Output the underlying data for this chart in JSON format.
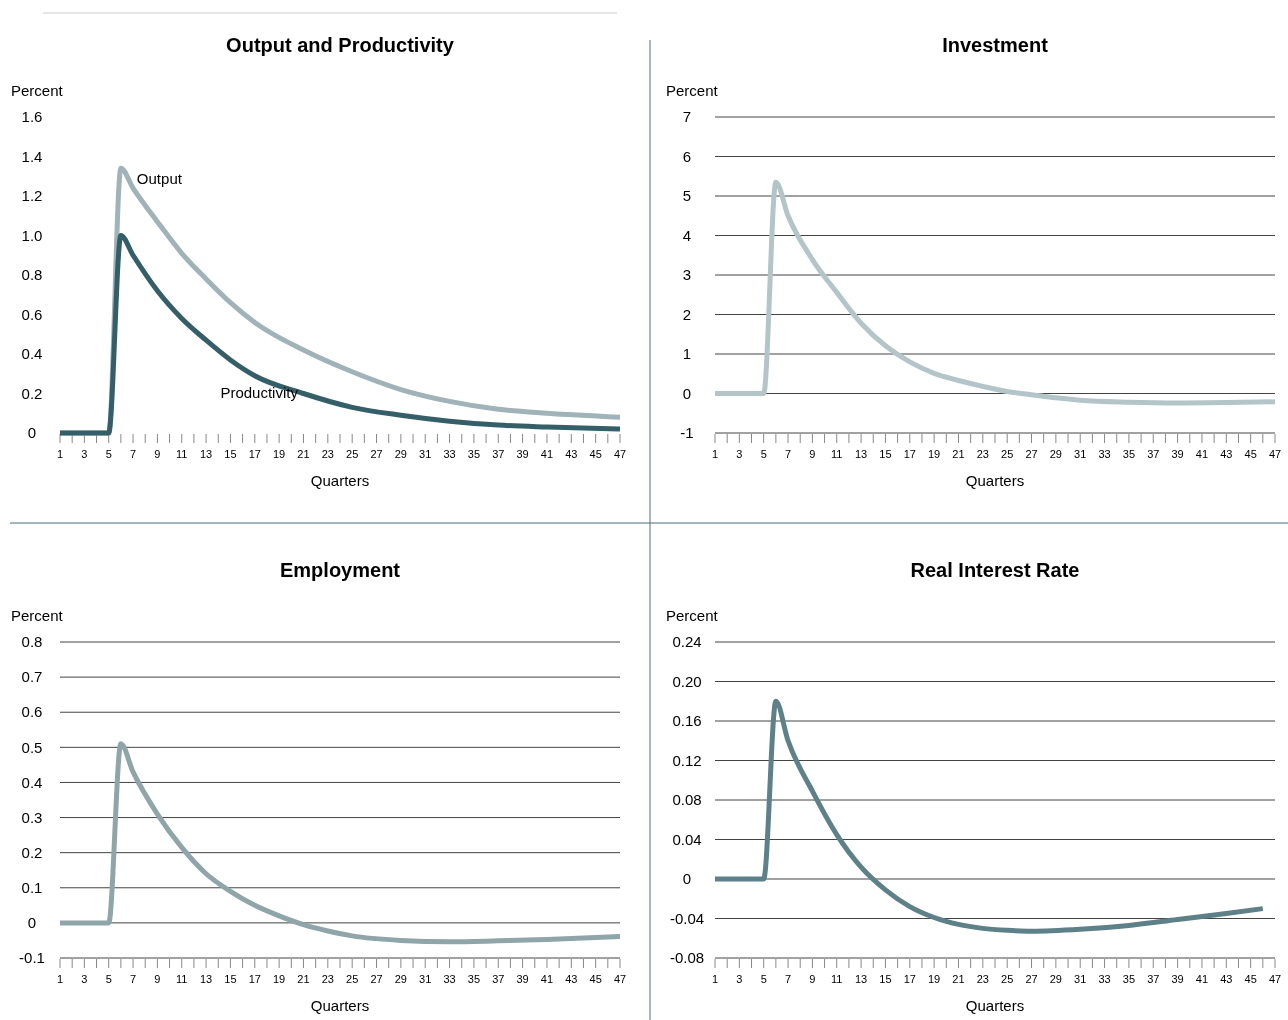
{
  "chart_data": [
    {
      "type": "line",
      "title": "Output and Productivity",
      "ylabel": "Percent",
      "xlabel": "Quarters",
      "xlim": [
        1,
        47
      ],
      "xticks": [
        1,
        {
          "value": 2,
          "label": null
        },
        3,
        {
          "value": 4,
          "label": null
        },
        5,
        {
          "value": 6,
          "label": null
        },
        7,
        {
          "value": 8,
          "label": null
        },
        9,
        {
          "value": 10,
          "label": null
        },
        11,
        {
          "value": 12,
          "label": null
        },
        13,
        {
          "value": 14,
          "label": null
        },
        15,
        {
          "value": 16,
          "label": null
        },
        17,
        {
          "value": 18,
          "label": null
        },
        19,
        {
          "value": 20,
          "label": null
        },
        21,
        {
          "value": 22,
          "label": null
        },
        23,
        {
          "value": 24,
          "label": null
        },
        25,
        {
          "value": 26,
          "label": null
        },
        27,
        {
          "value": 28,
          "label": null
        },
        29,
        {
          "value": 30,
          "label": null
        },
        31,
        {
          "value": 32,
          "label": null
        },
        33,
        {
          "value": 34,
          "label": null
        },
        35,
        {
          "value": 36,
          "label": null
        },
        37,
        {
          "value": 38,
          "label": null
        },
        39,
        {
          "value": 40,
          "label": null
        },
        41,
        {
          "value": 42,
          "label": null
        },
        43,
        {
          "value": 44,
          "label": null
        },
        45,
        {
          "value": 46,
          "label": null
        },
        47
      ],
      "ylim": [
        0,
        1.6
      ],
      "yticks": [
        0,
        0.2,
        0.4,
        0.6,
        0.8,
        {
          "value": 1,
          "label": "1.0"
        },
        1.2,
        1.4,
        1.6
      ],
      "grid": false,
      "x": [
        1,
        5,
        6,
        7,
        9,
        11,
        13,
        15,
        17,
        21,
        25,
        29,
        33,
        37,
        41,
        47
      ],
      "series": [
        {
          "name": "Output",
          "color": "#9fb3b8",
          "values": [
            0,
            0,
            1.34,
            1.24,
            1.07,
            0.91,
            0.78,
            0.66,
            0.56,
            0.42,
            0.31,
            0.22,
            0.16,
            0.12,
            0.1,
            0.08
          ]
        },
        {
          "name": "Productivity",
          "color": "#355f68",
          "values": [
            0,
            0,
            1.0,
            0.9,
            0.72,
            0.58,
            0.47,
            0.37,
            0.29,
            0.2,
            0.13,
            0.09,
            0.06,
            0.04,
            0.03,
            0.02
          ]
        }
      ]
    },
    {
      "type": "line",
      "title": "Investment",
      "ylabel": "Percent",
      "xlabel": "Quarters",
      "xlim": [
        1,
        47
      ],
      "xticks": [
        1,
        {
          "value": 2,
          "label": null
        },
        3,
        {
          "value": 4,
          "label": null
        },
        5,
        {
          "value": 6,
          "label": null
        },
        7,
        {
          "value": 8,
          "label": null
        },
        9,
        {
          "value": 10,
          "label": null
        },
        11,
        {
          "value": 12,
          "label": null
        },
        13,
        {
          "value": 14,
          "label": null
        },
        15,
        {
          "value": 16,
          "label": null
        },
        17,
        {
          "value": 18,
          "label": null
        },
        19,
        {
          "value": 20,
          "label": null
        },
        21,
        {
          "value": 22,
          "label": null
        },
        23,
        {
          "value": 24,
          "label": null
        },
        25,
        {
          "value": 26,
          "label": null
        },
        27,
        {
          "value": 28,
          "label": null
        },
        29,
        {
          "value": 30,
          "label": null
        },
        31,
        {
          "value": 32,
          "label": null
        },
        33,
        {
          "value": 34,
          "label": null
        },
        35,
        {
          "value": 36,
          "label": null
        },
        37,
        {
          "value": 38,
          "label": null
        },
        39,
        {
          "value": 40,
          "label": null
        },
        41,
        {
          "value": 42,
          "label": null
        },
        43,
        {
          "value": 44,
          "label": null
        },
        45,
        {
          "value": 46,
          "label": null
        },
        47
      ],
      "ylim": [
        -1,
        7
      ],
      "yticks": [
        -1,
        0,
        1,
        2,
        3,
        4,
        5,
        6,
        7
      ],
      "grid": "y",
      "x": [
        1,
        5,
        6,
        7,
        9,
        11,
        13,
        15,
        17,
        19,
        21,
        23,
        25,
        27,
        29,
        31,
        35,
        39,
        43,
        47
      ],
      "series": [
        {
          "color": "#b3c5c9",
          "values": [
            0,
            0,
            5.35,
            4.5,
            3.39,
            2.56,
            1.78,
            1.21,
            0.8,
            0.51,
            0.33,
            0.18,
            0.05,
            -0.03,
            -0.11,
            -0.17,
            -0.22,
            -0.24,
            -0.23,
            -0.21
          ]
        }
      ]
    },
    {
      "type": "line",
      "title": "Employment",
      "ylabel": "Percent",
      "xlabel": "Quarters",
      "xlim": [
        1,
        47
      ],
      "xticks": [
        1,
        {
          "value": 2,
          "label": null
        },
        3,
        {
          "value": 4,
          "label": null
        },
        5,
        {
          "value": 6,
          "label": null
        },
        7,
        {
          "value": 8,
          "label": null
        },
        9,
        {
          "value": 10,
          "label": null
        },
        11,
        {
          "value": 12,
          "label": null
        },
        13,
        {
          "value": 14,
          "label": null
        },
        15,
        {
          "value": 16,
          "label": null
        },
        17,
        {
          "value": 18,
          "label": null
        },
        19,
        {
          "value": 20,
          "label": null
        },
        21,
        {
          "value": 22,
          "label": null
        },
        23,
        {
          "value": 24,
          "label": null
        },
        25,
        {
          "value": 26,
          "label": null
        },
        27,
        {
          "value": 28,
          "label": null
        },
        29,
        {
          "value": 30,
          "label": null
        },
        31,
        {
          "value": 32,
          "label": null
        },
        33,
        {
          "value": 34,
          "label": null
        },
        35,
        {
          "value": 36,
          "label": null
        },
        37,
        {
          "value": 38,
          "label": null
        },
        39,
        {
          "value": 40,
          "label": null
        },
        41,
        {
          "value": 42,
          "label": null
        },
        43,
        {
          "value": 44,
          "label": null
        },
        45,
        {
          "value": 46,
          "label": null
        },
        47
      ],
      "ylim": [
        -0.1,
        0.8
      ],
      "yticks": [
        -0.1,
        0,
        0.1,
        0.2,
        0.3,
        0.4,
        0.5,
        0.6,
        0.7,
        0.8
      ],
      "grid": "y",
      "x": [
        1,
        5,
        6,
        7,
        9,
        11,
        13,
        15,
        17,
        19,
        21,
        23,
        25,
        29,
        33,
        37,
        41,
        47
      ],
      "series": [
        {
          "color": "#8fa5aa",
          "values": [
            0,
            0,
            0.51,
            0.43,
            0.31,
            0.215,
            0.14,
            0.09,
            0.05,
            0.02,
            -0.005,
            -0.023,
            -0.037,
            -0.05,
            -0.054,
            -0.051,
            -0.047,
            -0.039
          ]
        }
      ]
    },
    {
      "type": "line",
      "title": "Real Interest Rate",
      "ylabel": "Percent",
      "xlabel": "Quarters",
      "xlim": [
        1,
        47
      ],
      "xticks": [
        1,
        {
          "value": 2,
          "label": null
        },
        3,
        {
          "value": 4,
          "label": null
        },
        5,
        {
          "value": 6,
          "label": null
        },
        7,
        {
          "value": 8,
          "label": null
        },
        9,
        {
          "value": 10,
          "label": null
        },
        11,
        {
          "value": 12,
          "label": null
        },
        13,
        {
          "value": 14,
          "label": null
        },
        15,
        {
          "value": 16,
          "label": null
        },
        17,
        {
          "value": 18,
          "label": null
        },
        19,
        {
          "value": 20,
          "label": null
        },
        21,
        {
          "value": 22,
          "label": null
        },
        23,
        {
          "value": 24,
          "label": null
        },
        25,
        {
          "value": 26,
          "label": null
        },
        27,
        {
          "value": 28,
          "label": null
        },
        29,
        {
          "value": 30,
          "label": null
        },
        31,
        {
          "value": 32,
          "label": null
        },
        33,
        {
          "value": 34,
          "label": null
        },
        35,
        {
          "value": 36,
          "label": null
        },
        37,
        {
          "value": 38,
          "label": null
        },
        39,
        {
          "value": 40,
          "label": null
        },
        41,
        {
          "value": 42,
          "label": null
        },
        43,
        {
          "value": 44,
          "label": null
        },
        45,
        {
          "value": 46,
          "label": null
        },
        47
      ],
      "ylim": [
        -0.08,
        0.24
      ],
      "yticks": [
        {
          "value": -0.08,
          "label": "-0.08"
        },
        {
          "value": -0.04,
          "label": "-0.04"
        },
        0,
        {
          "value": 0.04,
          "label": "0.04"
        },
        {
          "value": 0.08,
          "label": "0.08"
        },
        {
          "value": 0.12,
          "label": "0.12"
        },
        {
          "value": 0.16,
          "label": "0.16"
        },
        {
          "value": 0.2,
          "label": "0.20"
        },
        {
          "value": 0.24,
          "label": "0.24"
        }
      ],
      "grid": "y",
      "x": [
        1,
        5,
        6,
        7,
        9,
        11,
        13,
        15,
        17,
        19,
        21,
        23,
        25,
        27,
        31,
        35,
        39,
        43,
        46
      ],
      "series": [
        {
          "color": "#5e8088",
          "values": [
            0,
            0,
            0.18,
            0.14,
            0.089,
            0.045,
            0.012,
            -0.011,
            -0.028,
            -0.039,
            -0.046,
            -0.05,
            -0.052,
            -0.053,
            -0.051,
            -0.047,
            -0.041,
            -0.035,
            -0.03
          ]
        }
      ]
    }
  ]
}
